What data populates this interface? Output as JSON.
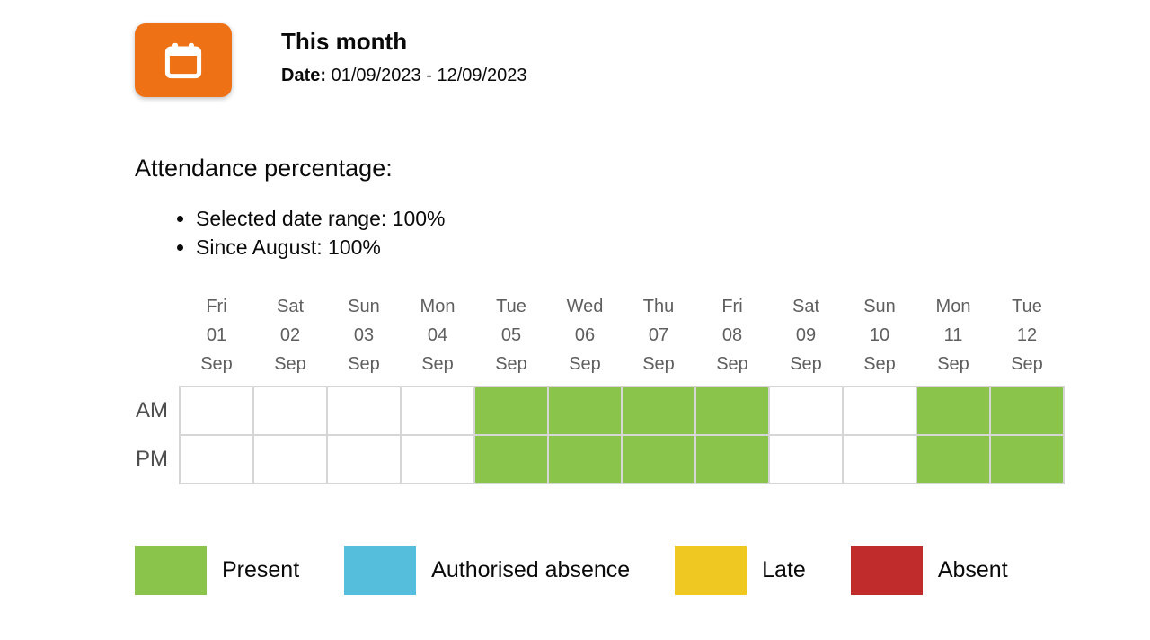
{
  "header": {
    "title": "This month",
    "date_label": "Date:",
    "date_range": "01/09/2023 - 12/09/2023",
    "icon": "calendar-icon",
    "icon_color": "#ee7115"
  },
  "attendance": {
    "heading": "Attendance percentage:",
    "bullets": [
      "Selected date range: 100%",
      "Since August: 100%"
    ]
  },
  "calendar": {
    "row_labels": {
      "am": "AM",
      "pm": "PM"
    },
    "days": [
      {
        "dow": "Fri",
        "date": "01",
        "month": "Sep",
        "am": "none",
        "pm": "none"
      },
      {
        "dow": "Sat",
        "date": "02",
        "month": "Sep",
        "am": "none",
        "pm": "none"
      },
      {
        "dow": "Sun",
        "date": "03",
        "month": "Sep",
        "am": "none",
        "pm": "none"
      },
      {
        "dow": "Mon",
        "date": "04",
        "month": "Sep",
        "am": "none",
        "pm": "none"
      },
      {
        "dow": "Tue",
        "date": "05",
        "month": "Sep",
        "am": "present",
        "pm": "present"
      },
      {
        "dow": "Wed",
        "date": "06",
        "month": "Sep",
        "am": "present",
        "pm": "present"
      },
      {
        "dow": "Thu",
        "date": "07",
        "month": "Sep",
        "am": "present",
        "pm": "present"
      },
      {
        "dow": "Fri",
        "date": "08",
        "month": "Sep",
        "am": "present",
        "pm": "present"
      },
      {
        "dow": "Sat",
        "date": "09",
        "month": "Sep",
        "am": "none",
        "pm": "none"
      },
      {
        "dow": "Sun",
        "date": "10",
        "month": "Sep",
        "am": "none",
        "pm": "none"
      },
      {
        "dow": "Mon",
        "date": "11",
        "month": "Sep",
        "am": "present",
        "pm": "present"
      },
      {
        "dow": "Tue",
        "date": "12",
        "month": "Sep",
        "am": "present",
        "pm": "present"
      }
    ],
    "grid_border_color": "#d6d6d6"
  },
  "legend": {
    "items": [
      {
        "key": "present",
        "label": "Present",
        "color": "#8ac44a"
      },
      {
        "key": "authorised-absence",
        "label": "Authorised absence",
        "color": "#54bedc"
      },
      {
        "key": "late",
        "label": "Late",
        "color": "#efc922"
      },
      {
        "key": "absent",
        "label": "Absent",
        "color": "#c02b2b"
      }
    ]
  }
}
